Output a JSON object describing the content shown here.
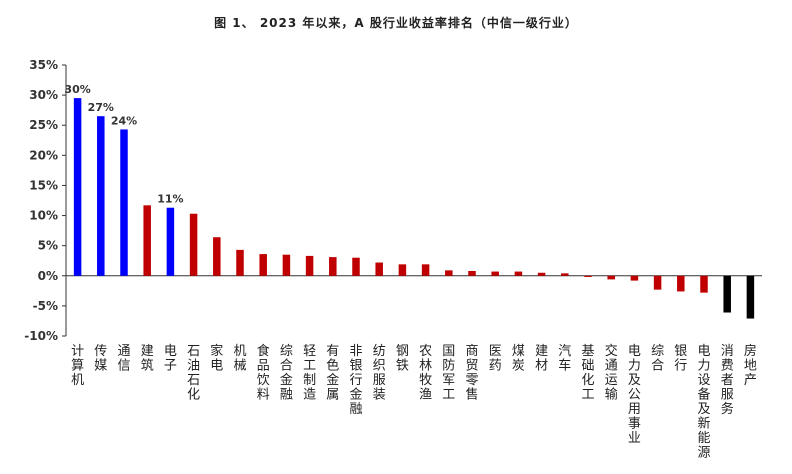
{
  "title": "图 1、 2023 年以来，A 股行业收益率排名（中信一级行业）",
  "chart_data": {
    "type": "bar",
    "title": "图 1、 2023 年以来，A 股行业收益率排名（中信一级行业）",
    "xlabel": "",
    "ylabel": "",
    "ylim": [
      -0.1,
      0.35
    ],
    "yticks": [
      -0.1,
      -0.05,
      0.0,
      0.05,
      0.1,
      0.15,
      0.2,
      0.25,
      0.3,
      0.35
    ],
    "ytick_labels": [
      "-10%",
      "-5%",
      "0%",
      "5%",
      "10%",
      "15%",
      "20%",
      "25%",
      "30%",
      "35%"
    ],
    "grid": false,
    "legend": "none",
    "categories": [
      "计算机",
      "传媒",
      "通信",
      "建筑",
      "电子",
      "石油石化",
      "家电",
      "机械",
      "食品饮料",
      "综合金融",
      "轻工制造",
      "有色金属",
      "非银行金融",
      "纺织服装",
      "钢铁",
      "农林牧渔",
      "国防军工",
      "商贸零售",
      "医药",
      "煤炭",
      "建材",
      "汽车",
      "基础化工",
      "交通运输",
      "电力及公用事业",
      "综合",
      "银行",
      "电力设备及新能源",
      "消费者服务",
      "房地产"
    ],
    "values": [
      0.295,
      0.265,
      0.243,
      0.117,
      0.113,
      0.103,
      0.064,
      0.043,
      0.036,
      0.035,
      0.033,
      0.031,
      0.03,
      0.022,
      0.019,
      0.019,
      0.009,
      0.008,
      0.007,
      0.007,
      0.005,
      0.004,
      -0.002,
      -0.006,
      -0.008,
      -0.023,
      -0.026,
      -0.028,
      -0.061,
      -0.071
    ],
    "colors": [
      "#0000ff",
      "#0000ff",
      "#0000ff",
      "#c00000",
      "#0000ff",
      "#c00000",
      "#c00000",
      "#c00000",
      "#c00000",
      "#c00000",
      "#c00000",
      "#c00000",
      "#c00000",
      "#c00000",
      "#c00000",
      "#c00000",
      "#c00000",
      "#c00000",
      "#c00000",
      "#c00000",
      "#c00000",
      "#c00000",
      "#c00000",
      "#c00000",
      "#c00000",
      "#c00000",
      "#c00000",
      "#c00000",
      "#000000",
      "#000000"
    ],
    "data_labels": [
      "30%",
      "27%",
      "24%",
      "",
      "11%",
      "",
      "",
      "",
      "",
      "",
      "",
      "",
      "",
      "",
      "",
      "",
      "",
      "",
      "",
      "",
      "",
      "",
      "",
      "",
      "",
      "",
      "",
      "",
      "",
      ""
    ]
  }
}
